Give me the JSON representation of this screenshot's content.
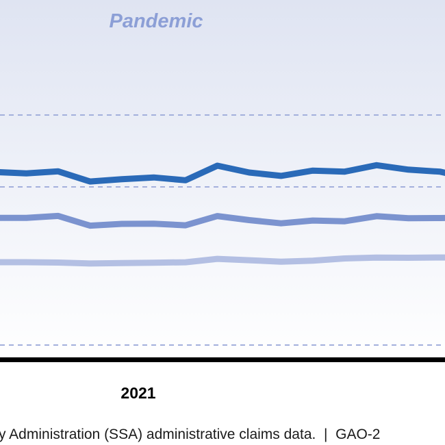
{
  "chart_data": {
    "type": "line",
    "annotation": "Pandemic",
    "year_label": "2021",
    "source_note": "y Administration (SSA) administrative claims data.  |  GAO-2",
    "grid": "dashed horizontal",
    "colors": {
      "shade_top": "#dfe4f2",
      "shade_bottom": "#ffffff",
      "gridline": "#a3b0dc",
      "axis": "#000000",
      "annotation": "#8c9fd6"
    },
    "series": [
      {
        "color": "#2a6ab8",
        "values": [
          0.208,
          0.188,
          0.216,
          0.075,
          0.108,
          0.131,
          0.092,
          0.295,
          0.2,
          0.153,
          0.227,
          0.212,
          0.302,
          0.24,
          0.211,
          0.114
        ]
      },
      {
        "color": "#7b93cf",
        "values": [
          -0.431,
          -0.431,
          -0.404,
          -0.539,
          -0.514,
          -0.511,
          -0.534,
          -0.406,
          -0.462,
          -0.507,
          -0.468,
          -0.478,
          -0.408,
          -0.435,
          -0.433,
          -0.422
        ]
      },
      {
        "color": "#b3bfe3",
        "values": [
          -1.048,
          -1.048,
          -1.052,
          -1.066,
          -1.059,
          -1.054,
          -1.049,
          -1.001,
          -1.02,
          -1.04,
          -1.027,
          -0.995,
          -0.983,
          -0.986,
          -0.982,
          -0.982
        ]
      }
    ]
  }
}
